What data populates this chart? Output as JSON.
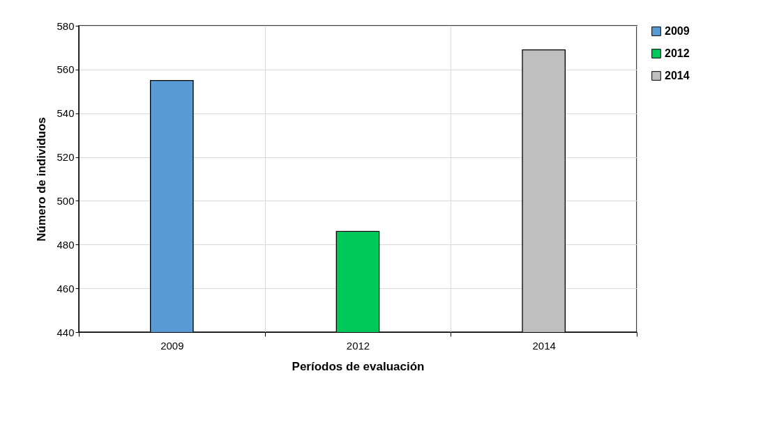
{
  "chart_data": {
    "type": "bar",
    "xlabel": "Períodos de evaluación",
    "ylabel": "Número de individuos",
    "categories": [
      "2009",
      "2012",
      "2014"
    ],
    "series": [
      {
        "name": "2009",
        "color": "#5b9bd5",
        "values": [
          555,
          null,
          null
        ]
      },
      {
        "name": "2012",
        "color": "#00c85a",
        "values": [
          null,
          486,
          null
        ]
      },
      {
        "name": "2014",
        "color": "#bfbfbf",
        "values": [
          null,
          null,
          569
        ]
      }
    ],
    "ylim": [
      440,
      580
    ],
    "yticks": [
      440,
      460,
      480,
      500,
      520,
      540,
      560,
      580
    ],
    "grid": true,
    "legend": "right"
  }
}
